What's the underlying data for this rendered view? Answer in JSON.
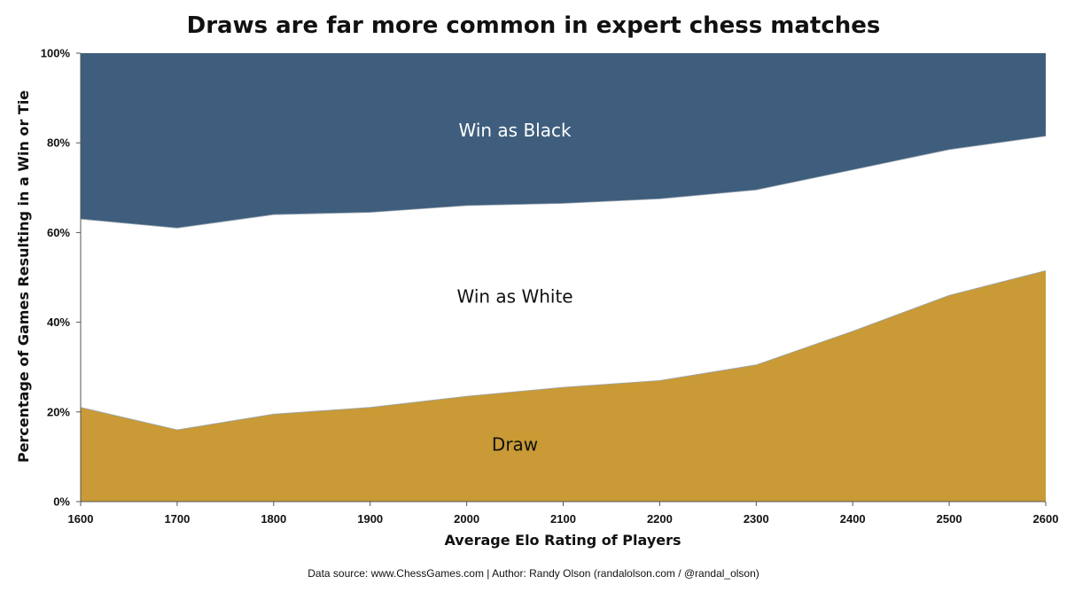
{
  "chart_data": {
    "type": "area",
    "title": "Draws are far more common in expert chess matches",
    "xlabel": "Average Elo Rating of Players",
    "ylabel": "Percentage of Games Resulting in a Win or Tie",
    "x": [
      1600,
      1700,
      1800,
      1900,
      2000,
      2100,
      2200,
      2300,
      2400,
      2500,
      2600
    ],
    "xlim": [
      1600,
      2600
    ],
    "ylim": [
      0,
      100
    ],
    "x_ticks": [
      "1600",
      "1700",
      "1800",
      "1900",
      "2000",
      "2100",
      "2200",
      "2300",
      "2400",
      "2500",
      "2600"
    ],
    "y_ticks": [
      "0%",
      "20%",
      "40%",
      "60%",
      "80%",
      "100%"
    ],
    "stacked": true,
    "percent": true,
    "grid": false,
    "legend": "none",
    "series": [
      {
        "name": "Draw",
        "color": "#C99A35",
        "values": [
          21,
          16,
          19.5,
          21,
          23.5,
          25.5,
          27,
          30.5,
          38,
          46,
          51.5
        ]
      },
      {
        "name": "Win as White",
        "color": "#FFFFFF",
        "values": [
          42,
          45,
          44.5,
          43.5,
          42.5,
          41,
          40.5,
          39,
          36,
          32.5,
          30
        ]
      },
      {
        "name": "Win as Black",
        "color": "#3F5E7D",
        "values": [
          37,
          39,
          36,
          35.5,
          34,
          33.5,
          32.5,
          30.5,
          26,
          21.5,
          18.5
        ]
      }
    ],
    "series_label_colors": {
      "Draw": "#111111",
      "Win as White": "#111111",
      "Win as Black": "#FFFFFF"
    }
  },
  "footer": {
    "source": "Data source: www.ChessGames.com | Author: Randy Olson (randalolson.com / @randal_olson)"
  }
}
